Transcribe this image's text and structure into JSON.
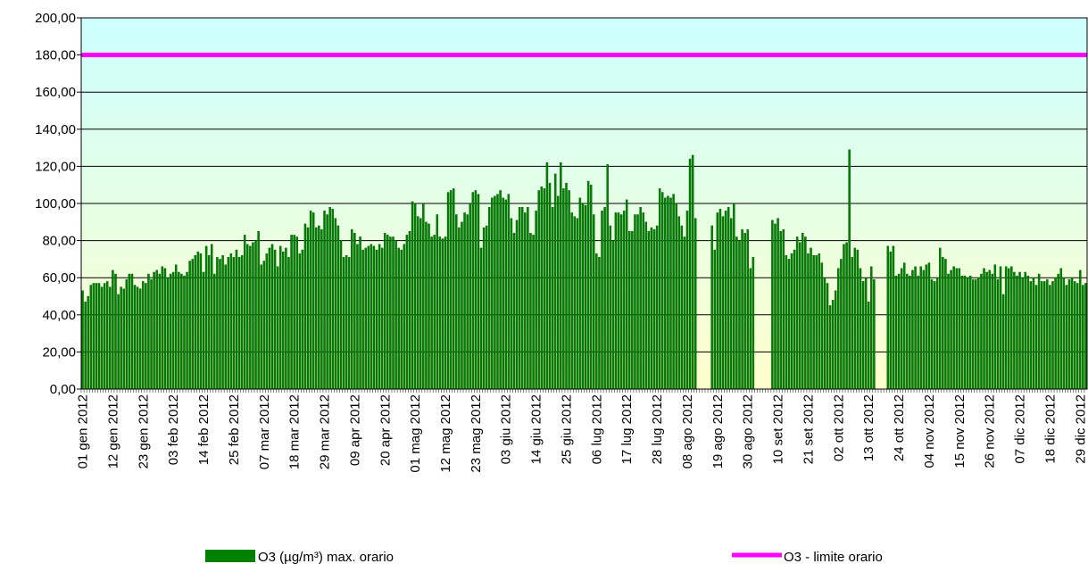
{
  "chart_data": {
    "type": "bar",
    "categories": [
      "01 gen 2012",
      null,
      null,
      null,
      null,
      null,
      null,
      null,
      null,
      null,
      null,
      "12 gen 2012",
      null,
      null,
      null,
      null,
      null,
      null,
      null,
      null,
      null,
      null,
      "23 gen 2012",
      null,
      null,
      null,
      null,
      null,
      null,
      null,
      null,
      null,
      null,
      "03 feb 2012",
      null,
      null,
      null,
      null,
      null,
      null,
      null,
      null,
      null,
      null,
      "14 feb 2012",
      null,
      null,
      null,
      null,
      null,
      null,
      null,
      null,
      null,
      null,
      "25 feb 2012",
      null,
      null,
      null,
      null,
      null,
      null,
      null,
      null,
      null,
      null,
      "07 mar 2012",
      null,
      null,
      null,
      null,
      null,
      null,
      null,
      null,
      null,
      null,
      "18 mar 2012",
      null,
      null,
      null,
      null,
      null,
      null,
      null,
      null,
      null,
      null,
      "29 mar 2012",
      null,
      null,
      null,
      null,
      null,
      null,
      null,
      null,
      null,
      null,
      "09 apr 2012",
      null,
      null,
      null,
      null,
      null,
      null,
      null,
      null,
      null,
      null,
      "20 apr 2012",
      null,
      null,
      null,
      null,
      null,
      null,
      null,
      null,
      null,
      null,
      "01 mag 2012",
      null,
      null,
      null,
      null,
      null,
      null,
      null,
      null,
      null,
      null,
      "12 mag 2012",
      null,
      null,
      null,
      null,
      null,
      null,
      null,
      null,
      null,
      null,
      "23 mag 2012",
      null,
      null,
      null,
      null,
      null,
      null,
      null,
      null,
      null,
      null,
      "03 giu 2012",
      null,
      null,
      null,
      null,
      null,
      null,
      null,
      null,
      null,
      null,
      "14 giu 2012",
      null,
      null,
      null,
      null,
      null,
      null,
      null,
      null,
      null,
      null,
      "25 giu 2012",
      null,
      null,
      null,
      null,
      null,
      null,
      null,
      null,
      null,
      null,
      "06 lug 2012",
      null,
      null,
      null,
      null,
      null,
      null,
      null,
      null,
      null,
      null,
      "17 lug 2012",
      null,
      null,
      null,
      null,
      null,
      null,
      null,
      null,
      null,
      null,
      "28 lug 2012",
      null,
      null,
      null,
      null,
      null,
      null,
      null,
      null,
      null,
      null,
      "08 ago 2012",
      null,
      null,
      null,
      null,
      null,
      null,
      null,
      null,
      null,
      null,
      "19 ago 2012",
      null,
      null,
      null,
      null,
      null,
      null,
      null,
      null,
      null,
      null,
      "30 ago 2012",
      null,
      null,
      null,
      null,
      null,
      null,
      null,
      null,
      null,
      null,
      "10 set 2012",
      null,
      null,
      null,
      null,
      null,
      null,
      null,
      null,
      null,
      null,
      "21 set 2012",
      null,
      null,
      null,
      null,
      null,
      null,
      null,
      null,
      null,
      null,
      "02 ott 2012",
      null,
      null,
      null,
      null,
      null,
      null,
      null,
      null,
      null,
      null,
      "13 ott 2012",
      null,
      null,
      null,
      null,
      null,
      null,
      null,
      null,
      null,
      null,
      "24 ott 2012",
      null,
      null,
      null,
      null,
      null,
      null,
      null,
      null,
      null,
      null,
      "04 nov 2012",
      null,
      null,
      null,
      null,
      null,
      null,
      null,
      null,
      null,
      null,
      "15 nov 2012",
      null,
      null,
      null,
      null,
      null,
      null,
      null,
      null,
      null,
      null,
      "26 nov 2012",
      null,
      null,
      null,
      null,
      null,
      null,
      null,
      null,
      null,
      null,
      "07 dic 2012",
      null,
      null,
      null,
      null,
      null,
      null,
      null,
      null,
      null,
      null,
      "18 dic 2012",
      null,
      null,
      null,
      null,
      null,
      null,
      null,
      null,
      null,
      null,
      "29 dic 2012",
      null,
      null
    ],
    "series": [
      {
        "name": "O3 (µg/m³) max. orario",
        "color": "#008000",
        "values": [
          53,
          47,
          50,
          56,
          57,
          57,
          57,
          55,
          57,
          58,
          55,
          64,
          62,
          51,
          55,
          54,
          59,
          62,
          62,
          56,
          55,
          54,
          58,
          57,
          62,
          59,
          63,
          64,
          62,
          66,
          65,
          60,
          62,
          63,
          67,
          63,
          62,
          61,
          63,
          69,
          70,
          72,
          74,
          73,
          63,
          77,
          72,
          78,
          62,
          71,
          70,
          72,
          67,
          71,
          73,
          71,
          75,
          71,
          72,
          83,
          78,
          77,
          79,
          80,
          85,
          67,
          69,
          73,
          76,
          78,
          75,
          66,
          77,
          74,
          76,
          71,
          83,
          83,
          82,
          73,
          75,
          89,
          87,
          96,
          95,
          87,
          88,
          86,
          96,
          94,
          98,
          97,
          92,
          88,
          80,
          71,
          72,
          71,
          86,
          84,
          78,
          82,
          75,
          76,
          77,
          78,
          77,
          75,
          78,
          76,
          84,
          83,
          82,
          82,
          80,
          76,
          75,
          78,
          83,
          85,
          101,
          100,
          93,
          92,
          100,
          90,
          89,
          82,
          83,
          94,
          82,
          81,
          82,
          106,
          107,
          108,
          94,
          87,
          90,
          95,
          94,
          100,
          106,
          107,
          105,
          76,
          87,
          88,
          98,
          103,
          104,
          105,
          107,
          103,
          102,
          105,
          92,
          84,
          91,
          98,
          98,
          95,
          98,
          84,
          83,
          96,
          107,
          109,
          108,
          122,
          111,
          98,
          116,
          104,
          122,
          108,
          111,
          107,
          95,
          93,
          92,
          103,
          100,
          99,
          112,
          110,
          94,
          73,
          71,
          96,
          98,
          121,
          88,
          80,
          95,
          95,
          94,
          96,
          102,
          85,
          85,
          94,
          94,
          98,
          95,
          90,
          85,
          87,
          86,
          88,
          108,
          106,
          103,
          104,
          103,
          105,
          100,
          93,
          88,
          82,
          96,
          124,
          126,
          92,
          null,
          null,
          null,
          null,
          null,
          88,
          75,
          95,
          97,
          93,
          96,
          98,
          92,
          100,
          82,
          80,
          86,
          84,
          86,
          65,
          71,
          null,
          null,
          null,
          null,
          null,
          null,
          91,
          89,
          92,
          85,
          86,
          72,
          70,
          73,
          75,
          82,
          79,
          84,
          82,
          73,
          76,
          72,
          72,
          73,
          68,
          60,
          57,
          45,
          48,
          53,
          65,
          70,
          78,
          79,
          129,
          71,
          76,
          75,
          65,
          58,
          60,
          47,
          66,
          59,
          null,
          null,
          null,
          null,
          77,
          74,
          77,
          61,
          62,
          65,
          68,
          62,
          61,
          64,
          66,
          61,
          66,
          64,
          67,
          68,
          59,
          58,
          60,
          76,
          71,
          70,
          62,
          64,
          66,
          65,
          65,
          61,
          61,
          60,
          61,
          59,
          59,
          60,
          62,
          65,
          63,
          64,
          62,
          67,
          59,
          66,
          51,
          66,
          65,
          66,
          63,
          61,
          63,
          60,
          63,
          61,
          58,
          60,
          56,
          62,
          58,
          58,
          59,
          56,
          58,
          60,
          62,
          65,
          60,
          56,
          59,
          60,
          58,
          57,
          64,
          56,
          57
        ]
      }
    ],
    "reference_line": {
      "name": "O3 - limite orario",
      "color": "#ff00ff",
      "value": 180
    },
    "ylim": [
      0,
      200
    ],
    "yticks": [
      {
        "value": 0,
        "label": "0,00"
      },
      {
        "value": 20,
        "label": "20,00"
      },
      {
        "value": 40,
        "label": "40,00"
      },
      {
        "value": 60,
        "label": "60,00"
      },
      {
        "value": 80,
        "label": "80,00"
      },
      {
        "value": 100,
        "label": "100,00"
      },
      {
        "value": 120,
        "label": "120,00"
      },
      {
        "value": 140,
        "label": "140,00"
      },
      {
        "value": 160,
        "label": "160,00"
      },
      {
        "value": 180,
        "label": "180,00"
      },
      {
        "value": 200,
        "label": "200,00"
      }
    ],
    "grid": true
  }
}
